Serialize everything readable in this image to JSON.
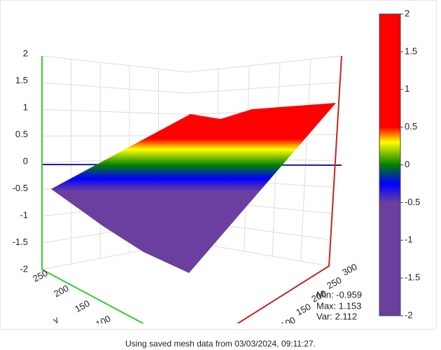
{
  "chart_data": {
    "type": "surface",
    "zlim": [
      -2,
      2
    ],
    "zticks": [
      2,
      1.5,
      1,
      0.5,
      0,
      -0.5,
      -1,
      -1.5,
      -2
    ],
    "yticks": [
      250,
      200,
      150,
      100
    ],
    "y_label": "y",
    "xticks": [
      300,
      250,
      200,
      150,
      100
    ],
    "colorbar": {
      "lim": [
        -2,
        2
      ],
      "ticks": [
        2,
        1.5,
        1,
        0.5,
        0,
        -0.5,
        -1,
        -1.5,
        -2
      ]
    },
    "colorscale": [
      {
        "value": -2,
        "color": "#6b3fa0"
      },
      {
        "value": -0.5,
        "color": "#6b3fa0"
      },
      {
        "value": -0.25,
        "color": "#0000ff"
      },
      {
        "value": 0,
        "color": "#008000"
      },
      {
        "value": 0.3,
        "color": "#ffff00"
      },
      {
        "value": 0.5,
        "color": "#ff0000"
      },
      {
        "value": 2,
        "color": "#ff0000"
      }
    ],
    "annotations": [
      "Min: -0.959",
      "Max: 1.153",
      "Var: 2.112"
    ],
    "footer": "Using saved mesh data from 03/03/2024, 09:11:27."
  }
}
